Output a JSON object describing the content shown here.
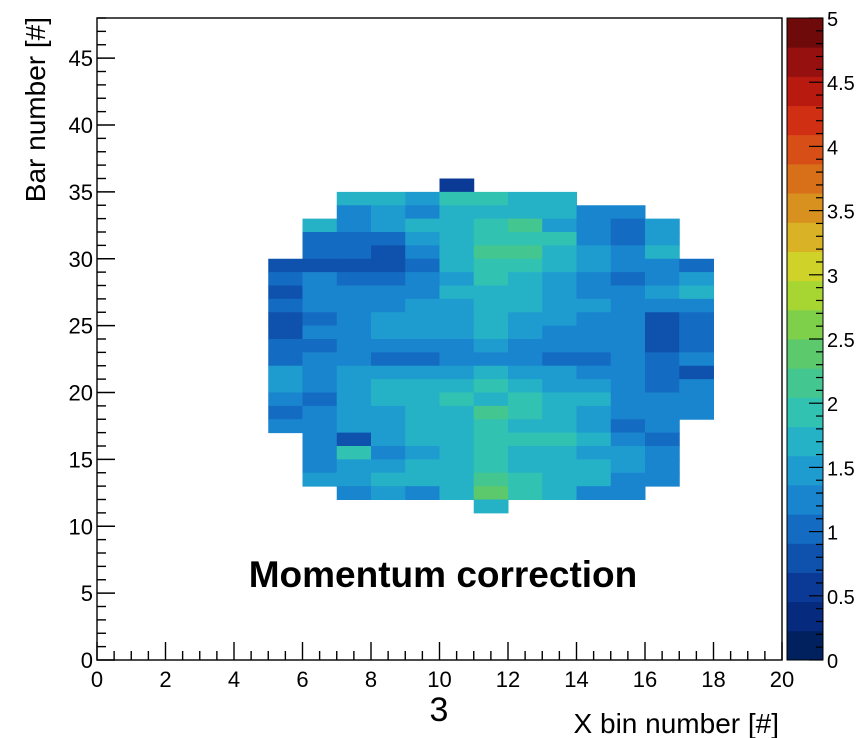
{
  "chart_data": {
    "type": "heatmap",
    "title": "",
    "annotation": "Momentum correction",
    "xlabel": "X bin number [#]",
    "ylabel": "Bar number [#]",
    "page_number": "3",
    "xlim": [
      0,
      20
    ],
    "ylim": [
      0,
      48
    ],
    "x_ticks": [
      "0",
      "2",
      "4",
      "6",
      "8",
      "10",
      "12",
      "14",
      "16",
      "18",
      "20"
    ],
    "y_ticks": [
      "0",
      "5",
      "10",
      "15",
      "20",
      "25",
      "30",
      "35",
      "40",
      "45"
    ],
    "zlim": [
      0,
      5
    ],
    "z_ticks": [
      "0",
      "0.5",
      "1",
      "1.5",
      "2",
      "2.5",
      "3",
      "3.5",
      "4",
      "4.5",
      "5"
    ],
    "palette": [
      "#00205e",
      "#052a7e",
      "#0a3a96",
      "#0f52ad",
      "#146cc2",
      "#1a85cf",
      "#1f9ccf",
      "#26b2c6",
      "#32c2b1",
      "#44c691",
      "#5bc96c",
      "#7ecf4a",
      "#a7d633",
      "#cfd228",
      "#d9b325",
      "#d8911f",
      "#d8701a",
      "#d74f16",
      "#d02f13",
      "#b91a10",
      "#961010",
      "#6e0a0a"
    ],
    "grid": false,
    "colorbar": "right",
    "cells": [
      [
        10,
        35,
        0.6
      ],
      [
        7,
        34,
        1.6
      ],
      [
        8,
        34,
        1.6
      ],
      [
        9,
        34,
        1.5
      ],
      [
        10,
        34,
        1.9
      ],
      [
        11,
        34,
        2.0
      ],
      [
        12,
        34,
        1.8
      ],
      [
        13,
        34,
        1.8
      ],
      [
        7,
        33,
        1.3
      ],
      [
        8,
        33,
        1.5
      ],
      [
        9,
        33,
        1.3
      ],
      [
        10,
        33,
        1.8
      ],
      [
        11,
        33,
        1.8
      ],
      [
        12,
        33,
        1.7
      ],
      [
        13,
        33,
        1.6
      ],
      [
        14,
        33,
        1.3
      ],
      [
        15,
        33,
        1.3
      ],
      [
        6,
        32,
        1.6
      ],
      [
        7,
        32,
        1.3
      ],
      [
        8,
        32,
        1.4
      ],
      [
        9,
        32,
        1.6
      ],
      [
        10,
        32,
        1.8
      ],
      [
        11,
        32,
        1.9
      ],
      [
        12,
        32,
        2.1
      ],
      [
        13,
        32,
        1.5
      ],
      [
        14,
        32,
        1.3
      ],
      [
        15,
        32,
        1.1
      ],
      [
        16,
        32,
        1.4
      ],
      [
        6,
        31,
        1.1
      ],
      [
        7,
        31,
        1.0
      ],
      [
        8,
        31,
        1.1
      ],
      [
        9,
        31,
        1.5
      ],
      [
        10,
        31,
        1.7
      ],
      [
        11,
        31,
        2.0
      ],
      [
        12,
        31,
        1.9
      ],
      [
        13,
        31,
        1.9
      ],
      [
        14,
        31,
        1.3
      ],
      [
        15,
        31,
        1.1
      ],
      [
        16,
        31,
        1.4
      ],
      [
        6,
        30,
        1.0
      ],
      [
        7,
        30,
        1.1
      ],
      [
        8,
        30,
        0.9
      ],
      [
        9,
        30,
        1.3
      ],
      [
        10,
        30,
        1.8
      ],
      [
        11,
        30,
        2.2
      ],
      [
        12,
        30,
        2.1
      ],
      [
        13,
        30,
        1.7
      ],
      [
        14,
        30,
        1.5
      ],
      [
        15,
        30,
        1.2
      ],
      [
        16,
        30,
        1.7
      ],
      [
        5,
        29,
        0.8
      ],
      [
        6,
        29,
        0.8
      ],
      [
        7,
        29,
        0.9
      ],
      [
        8,
        29,
        0.8
      ],
      [
        9,
        29,
        1.1
      ],
      [
        10,
        29,
        1.6
      ],
      [
        11,
        29,
        1.9
      ],
      [
        12,
        29,
        2.0
      ],
      [
        13,
        29,
        1.6
      ],
      [
        14,
        29,
        1.4
      ],
      [
        15,
        29,
        1.2
      ],
      [
        16,
        29,
        1.3
      ],
      [
        17,
        29,
        1.0
      ],
      [
        5,
        28,
        1.1
      ],
      [
        6,
        28,
        1.3
      ],
      [
        7,
        28,
        1.1
      ],
      [
        8,
        28,
        1.0
      ],
      [
        9,
        28,
        1.2
      ],
      [
        10,
        28,
        1.5
      ],
      [
        11,
        28,
        1.9
      ],
      [
        12,
        28,
        1.8
      ],
      [
        13,
        28,
        1.5
      ],
      [
        14,
        28,
        1.3
      ],
      [
        15,
        28,
        1.1
      ],
      [
        16,
        28,
        1.3
      ],
      [
        17,
        28,
        1.4
      ],
      [
        5,
        27,
        0.9
      ],
      [
        6,
        27,
        1.2
      ],
      [
        7,
        27,
        1.3
      ],
      [
        8,
        27,
        1.2
      ],
      [
        9,
        27,
        1.3
      ],
      [
        10,
        27,
        1.6
      ],
      [
        11,
        27,
        1.8
      ],
      [
        12,
        27,
        1.7
      ],
      [
        13,
        27,
        1.4
      ],
      [
        14,
        27,
        1.2
      ],
      [
        15,
        27,
        1.3
      ],
      [
        16,
        27,
        1.4
      ],
      [
        17,
        27,
        1.6
      ],
      [
        5,
        26,
        1.0
      ],
      [
        6,
        26,
        1.2
      ],
      [
        7,
        26,
        1.2
      ],
      [
        8,
        26,
        1.3
      ],
      [
        9,
        26,
        1.4
      ],
      [
        10,
        26,
        1.5
      ],
      [
        11,
        26,
        1.7
      ],
      [
        12,
        26,
        1.7
      ],
      [
        13,
        26,
        1.5
      ],
      [
        14,
        26,
        1.4
      ],
      [
        15,
        26,
        1.3
      ],
      [
        16,
        26,
        1.3
      ],
      [
        17,
        26,
        1.2
      ],
      [
        5,
        25,
        0.8
      ],
      [
        6,
        25,
        1.1
      ],
      [
        7,
        25,
        1.3
      ],
      [
        8,
        25,
        1.4
      ],
      [
        9,
        25,
        1.5
      ],
      [
        10,
        25,
        1.5
      ],
      [
        11,
        25,
        1.7
      ],
      [
        12,
        25,
        1.5
      ],
      [
        13,
        25,
        1.4
      ],
      [
        14,
        25,
        1.3
      ],
      [
        15,
        25,
        1.3
      ],
      [
        16,
        25,
        0.9
      ],
      [
        17,
        25,
        1.1
      ],
      [
        5,
        24,
        0.9
      ],
      [
        6,
        24,
        1.2
      ],
      [
        7,
        24,
        1.3
      ],
      [
        8,
        24,
        1.5
      ],
      [
        9,
        24,
        1.4
      ],
      [
        10,
        24,
        1.4
      ],
      [
        11,
        24,
        1.6
      ],
      [
        12,
        24,
        1.4
      ],
      [
        13,
        24,
        1.3
      ],
      [
        14,
        24,
        1.2
      ],
      [
        15,
        24,
        1.2
      ],
      [
        16,
        24,
        0.7
      ],
      [
        17,
        24,
        1.1
      ],
      [
        5,
        23,
        1.0
      ],
      [
        6,
        23,
        1.1
      ],
      [
        7,
        23,
        1.2
      ],
      [
        8,
        23,
        1.3
      ],
      [
        9,
        23,
        1.3
      ],
      [
        10,
        23,
        1.3
      ],
      [
        11,
        23,
        1.4
      ],
      [
        12,
        23,
        1.3
      ],
      [
        13,
        23,
        1.2
      ],
      [
        14,
        23,
        1.2
      ],
      [
        15,
        23,
        1.2
      ],
      [
        16,
        23,
        0.9
      ],
      [
        17,
        23,
        1.0
      ],
      [
        5,
        22,
        1.1
      ],
      [
        6,
        22,
        1.2
      ],
      [
        7,
        22,
        1.3
      ],
      [
        8,
        22,
        1.1
      ],
      [
        9,
        22,
        1.0
      ],
      [
        10,
        22,
        1.2
      ],
      [
        11,
        22,
        1.3
      ],
      [
        12,
        22,
        1.2
      ],
      [
        13,
        22,
        1.1
      ],
      [
        14,
        22,
        1.1
      ],
      [
        15,
        22,
        1.2
      ],
      [
        16,
        22,
        1.1
      ],
      [
        17,
        22,
        1.2
      ],
      [
        5,
        21,
        1.5
      ],
      [
        6,
        21,
        1.3
      ],
      [
        7,
        21,
        1.4
      ],
      [
        8,
        21,
        1.4
      ],
      [
        9,
        21,
        1.4
      ],
      [
        10,
        21,
        1.5
      ],
      [
        11,
        21,
        1.6
      ],
      [
        12,
        21,
        1.5
      ],
      [
        13,
        21,
        1.4
      ],
      [
        14,
        21,
        1.3
      ],
      [
        15,
        21,
        1.3
      ],
      [
        16,
        21,
        1.0
      ],
      [
        17,
        21,
        0.8
      ],
      [
        5,
        20,
        1.4
      ],
      [
        6,
        20,
        1.2
      ],
      [
        7,
        20,
        1.5
      ],
      [
        8,
        20,
        1.6
      ],
      [
        9,
        20,
        1.7
      ],
      [
        10,
        20,
        1.8
      ],
      [
        11,
        20,
        1.9
      ],
      [
        12,
        20,
        1.7
      ],
      [
        13,
        20,
        1.5
      ],
      [
        14,
        20,
        1.5
      ],
      [
        15,
        20,
        1.3
      ],
      [
        16,
        20,
        1.0
      ],
      [
        17,
        20,
        1.2
      ],
      [
        5,
        19,
        1.3
      ],
      [
        6,
        19,
        1.1
      ],
      [
        7,
        19,
        1.4
      ],
      [
        8,
        19,
        1.6
      ],
      [
        9,
        19,
        1.7
      ],
      [
        10,
        19,
        1.9
      ],
      [
        11,
        19,
        1.8
      ],
      [
        12,
        19,
        1.9
      ],
      [
        13,
        19,
        1.7
      ],
      [
        14,
        19,
        1.6
      ],
      [
        15,
        19,
        1.3
      ],
      [
        16,
        19,
        1.2
      ],
      [
        17,
        19,
        1.3
      ],
      [
        5,
        18,
        1.1
      ],
      [
        6,
        18,
        1.2
      ],
      [
        7,
        18,
        1.4
      ],
      [
        8,
        18,
        1.5
      ],
      [
        9,
        18,
        1.6
      ],
      [
        10,
        18,
        1.8
      ],
      [
        11,
        18,
        2.1
      ],
      [
        12,
        18,
        2.0
      ],
      [
        13,
        18,
        1.8
      ],
      [
        14,
        18,
        1.5
      ],
      [
        15,
        18,
        1.3
      ],
      [
        16,
        18,
        1.2
      ],
      [
        17,
        18,
        1.3
      ],
      [
        5,
        17,
        1.3
      ],
      [
        6,
        17,
        1.2
      ],
      [
        7,
        17,
        1.4
      ],
      [
        8,
        17,
        1.5
      ],
      [
        9,
        17,
        1.7
      ],
      [
        10,
        17,
        1.8
      ],
      [
        11,
        17,
        1.9
      ],
      [
        12,
        17,
        1.8
      ],
      [
        13,
        17,
        1.6
      ],
      [
        14,
        17,
        1.4
      ],
      [
        15,
        17,
        1.0
      ],
      [
        16,
        17,
        1.2
      ],
      [
        6,
        16,
        1.3
      ],
      [
        7,
        16,
        0.9
      ],
      [
        8,
        16,
        1.4
      ],
      [
        9,
        16,
        1.6
      ],
      [
        10,
        16,
        1.7
      ],
      [
        11,
        16,
        1.9
      ],
      [
        12,
        16,
        2.0
      ],
      [
        13,
        16,
        1.9
      ],
      [
        14,
        16,
        1.6
      ],
      [
        15,
        16,
        1.2
      ],
      [
        16,
        16,
        1.0
      ],
      [
        6,
        15,
        1.3
      ],
      [
        7,
        15,
        1.9
      ],
      [
        8,
        15,
        1.3
      ],
      [
        9,
        15,
        1.5
      ],
      [
        10,
        15,
        1.6
      ],
      [
        11,
        15,
        1.9
      ],
      [
        12,
        15,
        1.8
      ],
      [
        13,
        15,
        1.7
      ],
      [
        14,
        15,
        1.4
      ],
      [
        15,
        15,
        1.5
      ],
      [
        16,
        15,
        1.3
      ],
      [
        6,
        14,
        1.2
      ],
      [
        7,
        14,
        1.5
      ],
      [
        8,
        14,
        1.4
      ],
      [
        9,
        14,
        1.6
      ],
      [
        10,
        14,
        1.6
      ],
      [
        11,
        14,
        2.0
      ],
      [
        12,
        14,
        1.8
      ],
      [
        13,
        14,
        1.7
      ],
      [
        14,
        14,
        1.6
      ],
      [
        15,
        14,
        1.4
      ],
      [
        16,
        14,
        1.2
      ],
      [
        6,
        13,
        1.5
      ],
      [
        7,
        13,
        1.4
      ],
      [
        8,
        13,
        1.6
      ],
      [
        9,
        13,
        1.6
      ],
      [
        10,
        13,
        1.7
      ],
      [
        11,
        13,
        2.1
      ],
      [
        12,
        13,
        1.9
      ],
      [
        13,
        13,
        1.8
      ],
      [
        14,
        13,
        1.6
      ],
      [
        15,
        13,
        1.3
      ],
      [
        16,
        13,
        1.3
      ],
      [
        7,
        12,
        1.3
      ],
      [
        8,
        12,
        1.4
      ],
      [
        9,
        12,
        1.2
      ],
      [
        10,
        12,
        1.8
      ],
      [
        11,
        12,
        2.3
      ],
      [
        12,
        12,
        2.0
      ],
      [
        13,
        12,
        1.7
      ],
      [
        14,
        12,
        1.2
      ],
      [
        15,
        12,
        1.2
      ],
      [
        11,
        11,
        1.7
      ]
    ]
  }
}
